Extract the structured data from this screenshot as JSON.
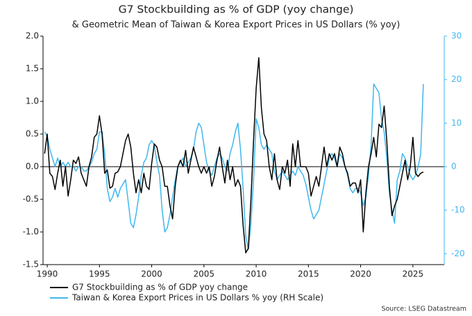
{
  "chart_data": {
    "type": "line",
    "title": "G7 Stockbuilding as % of GDP (yoy change)",
    "subtitle": "& Geometric Mean of Taiwan & Korea Export Prices in US Dollars (% yoy)",
    "source": "Source: LSEG Datastream",
    "x": [
      1989.75,
      1990,
      1990.25,
      1990.5,
      1990.75,
      1991,
      1991.25,
      1991.5,
      1991.75,
      1992,
      1992.25,
      1992.5,
      1992.75,
      1993,
      1993.25,
      1993.5,
      1993.75,
      1994,
      1994.25,
      1994.5,
      1994.75,
      1995,
      1995.25,
      1995.5,
      1995.75,
      1996,
      1996.25,
      1996.5,
      1996.75,
      1997,
      1997.25,
      1997.5,
      1997.75,
      1998,
      1998.25,
      1998.5,
      1998.75,
      1999,
      1999.25,
      1999.5,
      1999.75,
      2000,
      2000.25,
      2000.5,
      2000.75,
      2001,
      2001.25,
      2001.5,
      2001.75,
      2002,
      2002.25,
      2002.5,
      2002.75,
      2003,
      2003.25,
      2003.5,
      2003.75,
      2004,
      2004.25,
      2004.5,
      2004.75,
      2005,
      2005.25,
      2005.5,
      2005.75,
      2006,
      2006.25,
      2006.5,
      2006.75,
      2007,
      2007.25,
      2007.5,
      2007.75,
      2008,
      2008.25,
      2008.5,
      2008.75,
      2009,
      2009.25,
      2009.5,
      2009.75,
      2010,
      2010.25,
      2010.5,
      2010.75,
      2011,
      2011.25,
      2011.5,
      2011.75,
      2012,
      2012.25,
      2012.5,
      2012.75,
      2013,
      2013.25,
      2013.5,
      2013.75,
      2014,
      2014.25,
      2014.5,
      2014.75,
      2015,
      2015.25,
      2015.5,
      2015.75,
      2016,
      2016.25,
      2016.5,
      2016.75,
      2017,
      2017.25,
      2017.5,
      2017.75,
      2018,
      2018.25,
      2018.5,
      2018.75,
      2019,
      2019.25,
      2019.5,
      2019.75,
      2020,
      2020.25,
      2020.5,
      2020.75,
      2021,
      2021.25,
      2021.5,
      2021.75,
      2022,
      2022.25,
      2022.5,
      2022.75,
      2023,
      2023.25,
      2023.5,
      2023.75,
      2024,
      2024.25,
      2024.5,
      2024.75,
      2025,
      2025.25,
      2025.5,
      2025.75,
      2026
    ],
    "series": [
      {
        "name": "G7 Stockbuilding as % of GDP yoy change",
        "color": "#000000",
        "values": [
          0.2,
          0.5,
          -0.1,
          -0.15,
          -0.35,
          -0.1,
          0.1,
          -0.3,
          0.0,
          -0.45,
          -0.2,
          0.1,
          0.05,
          0.15,
          -0.1,
          -0.2,
          -0.3,
          0.0,
          0.15,
          0.45,
          0.5,
          0.78,
          0.5,
          -0.1,
          -0.05,
          -0.33,
          -0.3,
          -0.1,
          -0.08,
          0.0,
          0.2,
          0.4,
          0.5,
          0.3,
          -0.1,
          -0.4,
          -0.2,
          -0.4,
          -0.1,
          -0.3,
          -0.35,
          0.05,
          0.35,
          0.3,
          0.1,
          0.0,
          -0.3,
          -0.3,
          -0.6,
          -0.8,
          -0.3,
          0.0,
          0.1,
          0.0,
          0.25,
          -0.1,
          0.1,
          0.3,
          0.15,
          0.0,
          -0.1,
          0.0,
          -0.1,
          0.0,
          -0.3,
          -0.15,
          0.1,
          0.3,
          0.0,
          -0.25,
          0.1,
          -0.2,
          0.0,
          -0.3,
          -0.2,
          -0.3,
          -0.9,
          -1.32,
          -1.25,
          -0.5,
          0.4,
          1.2,
          1.67,
          0.9,
          0.5,
          0.4,
          0.0,
          -0.2,
          0.2,
          -0.2,
          -0.35,
          0.0,
          -0.1,
          0.1,
          -0.3,
          0.35,
          0.0,
          0.4,
          0.0,
          0.0,
          0.0,
          -0.1,
          -0.45,
          -0.3,
          -0.15,
          -0.3,
          0.0,
          0.3,
          0.0,
          0.2,
          0.1,
          0.2,
          0.0,
          0.3,
          0.2,
          0.0,
          -0.1,
          -0.3,
          -0.25,
          -0.25,
          -0.4,
          -0.2,
          -1.0,
          -0.4,
          0.0,
          0.2,
          0.45,
          0.15,
          0.65,
          0.6,
          0.93,
          0.4,
          -0.3,
          -0.75,
          -0.6,
          -0.5,
          -0.3,
          -0.1,
          0.1,
          -0.2,
          0.0,
          0.45,
          -0.1,
          -0.15,
          -0.1,
          -0.08
        ]
      },
      {
        "name": "Taiwan & Korea Export Prices in US Dollars % yoy (RH Scale)",
        "color": "#3fb7ee",
        "axis": "y2",
        "values": [
          8,
          7,
          4,
          2,
          0,
          2,
          0,
          1,
          0,
          1,
          0,
          0,
          -1,
          0,
          0,
          -1,
          -1,
          0,
          1,
          3,
          4,
          8,
          8,
          3,
          -5,
          -8,
          -7,
          -5,
          -7,
          -5,
          -4,
          -3,
          -8,
          -13,
          -14,
          -11,
          -7,
          -2,
          1,
          2,
          5,
          6,
          5,
          1,
          -2,
          -10,
          -15,
          -14,
          -11,
          -7,
          -3,
          0,
          1,
          2,
          0,
          1,
          2,
          4,
          8,
          10,
          9,
          5,
          1,
          -1,
          -2,
          0,
          2,
          3,
          2,
          0,
          -1,
          3,
          5,
          8,
          10,
          4,
          -5,
          -16,
          -19,
          -13,
          -3,
          11,
          9,
          5,
          4,
          5,
          4,
          3,
          -1,
          -3,
          -2,
          -1,
          -2,
          -3,
          -2,
          -1,
          -2,
          0,
          -1,
          -2,
          -4,
          -7,
          -10,
          -12,
          -11,
          -10,
          -7,
          -4,
          -1,
          2,
          3,
          2,
          0,
          3,
          2,
          0,
          -2,
          -5,
          -6,
          -5,
          -5,
          -6,
          -9,
          -7,
          -2,
          5,
          19,
          18,
          17,
          11,
          8,
          2,
          -6,
          -10,
          -13,
          -3,
          -1,
          3,
          2,
          0,
          -2,
          -3,
          -2,
          0,
          3,
          19
        ]
      }
    ],
    "xlim": [
      1989.6,
      2028
    ],
    "xticks": [
      1990,
      1995,
      2000,
      2005,
      2010,
      2015,
      2020,
      2025
    ],
    "ylim": [
      -1.5,
      2.0
    ],
    "yticks": [
      {
        "value": -1.5,
        "label": "-1.5"
      },
      {
        "value": -1.0,
        "label": "-1.0"
      },
      {
        "value": -0.5,
        "label": "-0.5"
      },
      {
        "value": 0,
        "label": "0.0"
      },
      0.5,
      {
        "value": 1.0,
        "label": "1.0"
      },
      1.5,
      {
        "value": 2.0,
        "label": "2.0"
      }
    ],
    "y2lim": [
      -22.5,
      30
    ],
    "y2ticks": [
      -20,
      -10,
      0,
      10,
      20,
      30
    ],
    "y2_color": "#3fb7ee",
    "grid": false,
    "legend": "bottom-left"
  }
}
